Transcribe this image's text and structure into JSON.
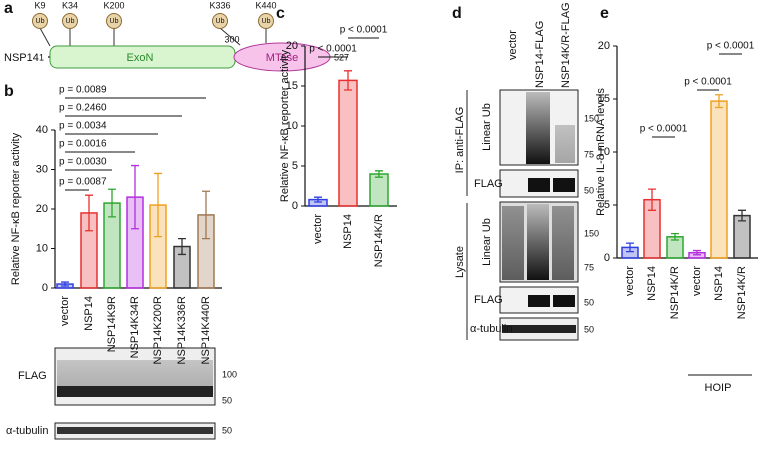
{
  "panel_letters": [
    "a",
    "b",
    "c",
    "d",
    "e"
  ],
  "domain_diagram": {
    "protein": "NSP14",
    "domains": [
      "ExoN",
      "MTase"
    ],
    "positions": [
      1,
      300,
      527
    ],
    "sites": [
      "K9",
      "K34",
      "K200",
      "K336",
      "K440"
    ],
    "modification": "Ub"
  },
  "chart_data": [
    {
      "type": "bar",
      "y_label": "Relative NF-κB reporter activity",
      "categories": [
        "vector",
        "NSP14",
        "NSP14K9R",
        "NSP14K34R",
        "NSP14K200R",
        "NSP14K336R",
        "NSP14K440R"
      ],
      "values": [
        1,
        19,
        21.5,
        23,
        21,
        10.5,
        18.5
      ],
      "errors": [
        0.5,
        4.5,
        3.5,
        8,
        8,
        2,
        6
      ],
      "colors": [
        "#2f3fe0",
        "#e83030",
        "#2ea82e",
        "#b52ee0",
        "#f0a020",
        "#333333",
        "#a07850"
      ],
      "ylim": [
        0,
        40
      ],
      "yticks": [
        0,
        10,
        20,
        30,
        40
      ],
      "comparisons": [
        "p = 0.0087",
        "p = 0.0030",
        "p = 0.0016",
        "p = 0.0034",
        "p = 0.2460",
        "p = 0.0089"
      ]
    },
    {
      "type": "bar",
      "y_label": "Relative NF-κB reporter activity",
      "categories": [
        "vector",
        "NSP14",
        "NSP14K/R"
      ],
      "values": [
        0.8,
        15.7,
        4
      ],
      "errors": [
        0.3,
        1.2,
        0.4
      ],
      "colors": [
        "#2f3fe0",
        "#e83030",
        "#2ea82e"
      ],
      "ylim": [
        0,
        20
      ],
      "yticks": [
        0,
        5,
        10,
        15,
        20
      ],
      "comparisons": [
        "p < 0.0001",
        "p < 0.0001"
      ]
    },
    {
      "type": "bar",
      "y_label": "Relative IL-8 mRNA levels",
      "categories": [
        "vector",
        "NSP14",
        "NSP14K/R",
        "vector",
        "NSP14",
        "NSP14K/R"
      ],
      "values": [
        1,
        5.5,
        2,
        0.5,
        14.8,
        4
      ],
      "errors": [
        0.4,
        1,
        0.3,
        0.2,
        0.6,
        0.5
      ],
      "colors": [
        "#2f3fe0",
        "#e83030",
        "#2ea82e",
        "#b52ee0",
        "#f0a020",
        "#333333"
      ],
      "ylim": [
        0,
        20
      ],
      "yticks": [
        0,
        5,
        10,
        15,
        20
      ],
      "comparisons": [
        "p < 0.0001",
        "p < 0.0001",
        "p < 0.0001"
      ],
      "group_label": "HOIP"
    }
  ],
  "blot_b": {
    "rows": [
      "FLAG",
      "α-tubulin"
    ],
    "markers": [
      100,
      50,
      50
    ]
  },
  "blot_d": {
    "lanes": [
      "vector",
      "NSP14-FLAG",
      "NSP14K/R-FLAG"
    ],
    "sections": [
      "IP: anti-FLAG",
      "Lysate"
    ],
    "ip_rows": [
      "Linear Ub",
      "FLAG"
    ],
    "lysate_rows": [
      "Linear Ub",
      "FLAG",
      "α-tubulin"
    ],
    "ip_markers": [
      150,
      75,
      50
    ],
    "lysate_markers": [
      150,
      75,
      50,
      50
    ]
  }
}
